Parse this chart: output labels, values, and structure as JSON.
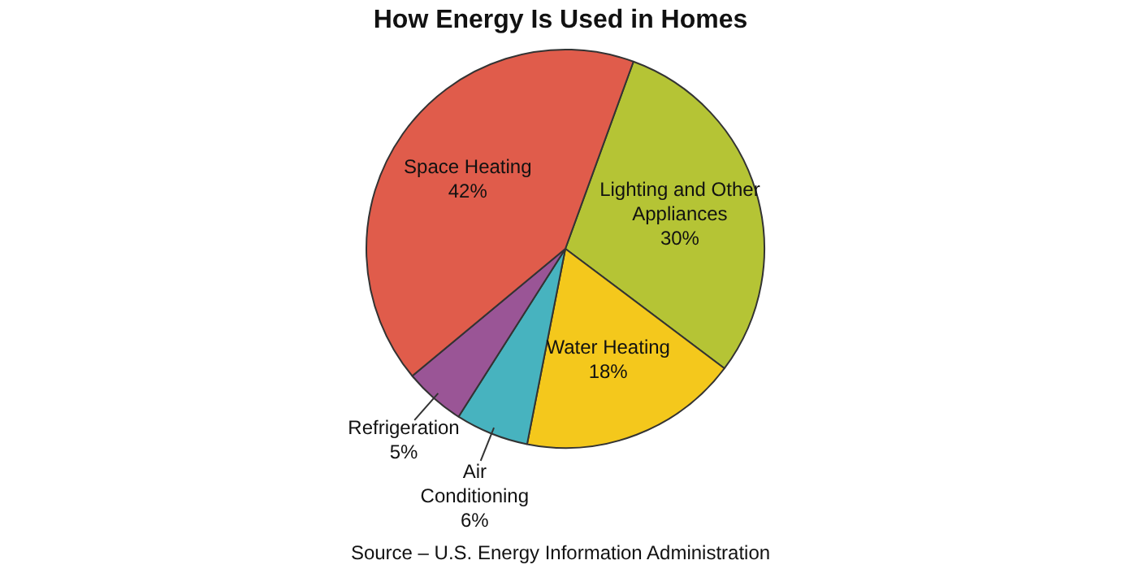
{
  "chart_data": {
    "type": "pie",
    "title": "How Energy Is Used in Homes",
    "categories": [
      "Lighting and Other Appliances",
      "Water Heating",
      "Air Conditioning",
      "Refrigeration",
      "Space Heating"
    ],
    "values": [
      30,
      18,
      6,
      5,
      42
    ],
    "value_labels": [
      "30%",
      "18%",
      "6%",
      "5%",
      "42%"
    ],
    "colors": [
      "#b5c435",
      "#f4c81c",
      "#47b3bf",
      "#9a5596",
      "#e05c4b"
    ],
    "annotations": [
      "Source – U.S. Energy Information Administration"
    ]
  }
}
